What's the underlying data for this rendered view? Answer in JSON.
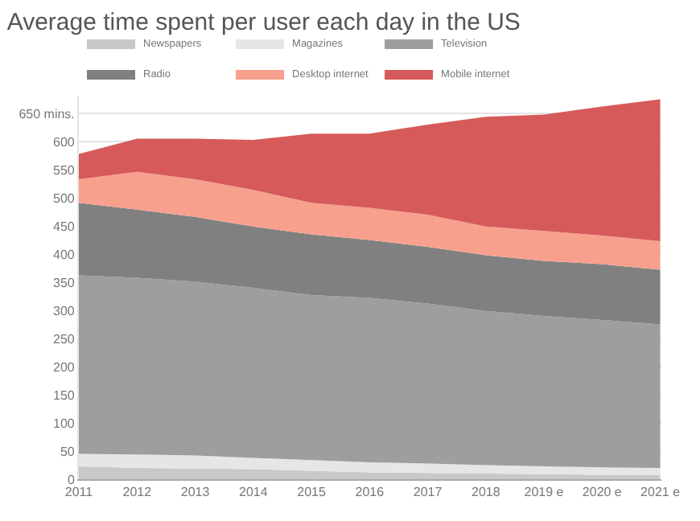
{
  "chart_data": {
    "type": "area",
    "stacked": true,
    "title": "Average time spent per user each day in the US",
    "categories": [
      "2011",
      "2012",
      "2013",
      "2014",
      "2015",
      "2016",
      "2017",
      "2018",
      "2019 e",
      "2020 e",
      "2021 e"
    ],
    "series": [
      {
        "name": "Newspapers",
        "color": "#c8c8c8",
        "values": [
          23,
          20,
          19,
          18,
          15,
          12,
          11,
          10,
          9,
          8,
          7
        ]
      },
      {
        "name": "Magazines",
        "color": "#e6e6e6",
        "values": [
          22,
          24,
          23,
          20,
          19,
          18,
          17,
          15,
          14,
          13,
          13
        ]
      },
      {
        "name": "Television",
        "color": "#9e9e9e",
        "values": [
          317,
          314,
          309,
          302,
          293,
          292,
          284,
          274,
          267,
          262,
          255
        ]
      },
      {
        "name": "Radio",
        "color": "#808080",
        "values": [
          129,
          121,
          115,
          109,
          108,
          103,
          101,
          99,
          98,
          99,
          97
        ]
      },
      {
        "name": "Desktop internet",
        "color": "#f7a08e",
        "values": [
          42,
          67,
          67,
          65,
          56,
          57,
          57,
          51,
          53,
          51,
          51
        ]
      },
      {
        "name": "Mobile internet",
        "color": "#d65a5a",
        "values": [
          45,
          59,
          72,
          89,
          123,
          132,
          160,
          195,
          207,
          229,
          252
        ]
      }
    ],
    "ylim": [
      0,
      680
    ],
    "yticks": [
      0,
      50,
      100,
      150,
      200,
      250,
      300,
      350,
      400,
      450,
      500,
      550,
      600,
      {
        "value": 650,
        "label": "650 mins."
      }
    ],
    "grid": "y",
    "legend": "top left"
  }
}
